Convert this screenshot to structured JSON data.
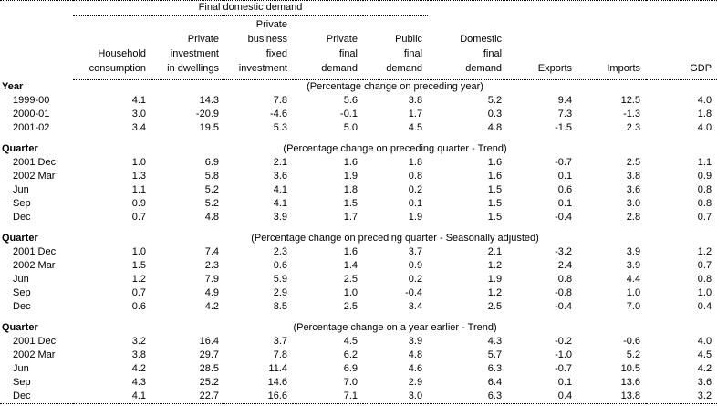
{
  "table": {
    "group_header": "Final domestic demand",
    "columns": [
      {
        "lines": [
          "Household",
          "consumption"
        ]
      },
      {
        "lines": [
          "Private",
          "investment",
          "in dwellings"
        ]
      },
      {
        "lines": [
          "Private",
          "business",
          "fixed",
          "investment"
        ]
      },
      {
        "lines": [
          "Private",
          "final",
          "demand"
        ]
      },
      {
        "lines": [
          "Public",
          "final",
          "demand"
        ]
      },
      {
        "lines": [
          "Domestic",
          "final",
          "demand"
        ]
      },
      {
        "lines": [
          "Exports"
        ]
      },
      {
        "lines": [
          "Imports"
        ]
      },
      {
        "lines": [
          "GDP"
        ]
      }
    ],
    "sections": [
      {
        "label": "Year",
        "note": "(Percentage change on preceding year)",
        "rows": [
          {
            "label": "1999-00",
            "values": [
              "4.1",
              "14.3",
              "7.8",
              "5.6",
              "3.8",
              "5.2",
              "9.4",
              "12.5",
              "4.0"
            ]
          },
          {
            "label": "2000-01",
            "values": [
              "3.0",
              "-20.9",
              "-4.6",
              "-0.1",
              "1.7",
              "0.3",
              "7.3",
              "-1.3",
              "1.8"
            ]
          },
          {
            "label": "2001-02",
            "values": [
              "3.4",
              "19.5",
              "5.3",
              "5.0",
              "4.5",
              "4.8",
              "-1.5",
              "2.3",
              "4.0"
            ]
          }
        ]
      },
      {
        "label": "Quarter",
        "note": "(Percentage change on preceding quarter - Trend)",
        "rows": [
          {
            "label": "2001 Dec",
            "values": [
              "1.0",
              "6.9",
              "2.1",
              "1.6",
              "1.8",
              "1.6",
              "-0.7",
              "2.5",
              "1.1"
            ]
          },
          {
            "label": "2002 Mar",
            "values": [
              "1.3",
              "5.8",
              "3.6",
              "1.9",
              "0.8",
              "1.6",
              "0.1",
              "3.8",
              "0.9"
            ]
          },
          {
            "label": "Jun",
            "values": [
              "1.1",
              "5.2",
              "4.1",
              "1.8",
              "0.2",
              "1.5",
              "0.6",
              "3.6",
              "0.8"
            ]
          },
          {
            "label": "Sep",
            "values": [
              "0.9",
              "5.2",
              "4.1",
              "1.5",
              "0.1",
              "1.5",
              "0.1",
              "3.0",
              "0.8"
            ]
          },
          {
            "label": "Dec",
            "values": [
              "0.7",
              "4.8",
              "3.9",
              "1.7",
              "1.9",
              "1.5",
              "-0.4",
              "2.8",
              "0.7"
            ]
          }
        ]
      },
      {
        "label": "Quarter",
        "note": "(Percentage change on preceding quarter - Seasonally adjusted)",
        "rows": [
          {
            "label": "2001 Dec",
            "values": [
              "1.0",
              "7.4",
              "2.3",
              "1.6",
              "3.7",
              "2.1",
              "-3.2",
              "3.9",
              "1.2"
            ]
          },
          {
            "label": "2002 Mar",
            "values": [
              "1.5",
              "2.3",
              "0.6",
              "1.4",
              "0.9",
              "1.2",
              "2.4",
              "3.9",
              "0.7"
            ]
          },
          {
            "label": "Jun",
            "values": [
              "1.2",
              "7.9",
              "5.9",
              "2.5",
              "0.2",
              "1.9",
              "0.8",
              "4.4",
              "0.8"
            ]
          },
          {
            "label": "Sep",
            "values": [
              "0.7",
              "4.9",
              "2.9",
              "1.0",
              "-0.4",
              "1.2",
              "-0.8",
              "1.0",
              "1.0"
            ]
          },
          {
            "label": "Dec",
            "values": [
              "0.6",
              "4.2",
              "8.5",
              "2.5",
              "3.4",
              "2.5",
              "-0.4",
              "7.0",
              "0.4"
            ]
          }
        ]
      },
      {
        "label": "Quarter",
        "note": "(Percentage change on a year earlier - Trend)",
        "rows": [
          {
            "label": "2001 Dec",
            "values": [
              "3.2",
              "16.4",
              "3.7",
              "4.5",
              "3.9",
              "4.3",
              "-0.2",
              "-0.6",
              "4.0"
            ]
          },
          {
            "label": "2002 Mar",
            "values": [
              "3.8",
              "29.7",
              "7.8",
              "6.2",
              "4.8",
              "5.7",
              "-1.0",
              "5.2",
              "4.5"
            ]
          },
          {
            "label": "Jun",
            "values": [
              "4.2",
              "28.5",
              "11.4",
              "6.9",
              "4.6",
              "6.3",
              "-0.7",
              "10.5",
              "4.2"
            ]
          },
          {
            "label": "Sep",
            "values": [
              "4.3",
              "25.2",
              "14.6",
              "7.0",
              "2.9",
              "6.4",
              "0.1",
              "13.6",
              "3.6"
            ]
          },
          {
            "label": "Dec",
            "values": [
              "4.1",
              "22.7",
              "16.6",
              "7.1",
              "3.0",
              "6.3",
              "0.4",
              "13.8",
              "3.2"
            ]
          }
        ]
      }
    ]
  }
}
